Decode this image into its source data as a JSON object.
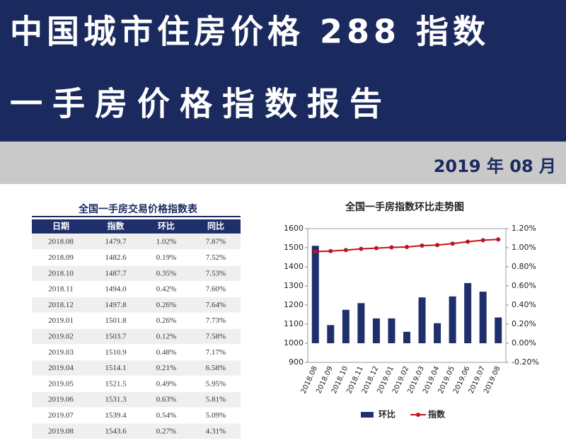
{
  "header": {
    "title": "中国城市住房价格 288 指数",
    "subtitle": "一手房价格指数报告",
    "date": "2019 年 08 月"
  },
  "table": {
    "title": "全国一手房交易价格指数表",
    "columns": [
      "日期",
      "指数",
      "环比",
      "同比"
    ],
    "rows": [
      [
        "2018.08",
        "1479.7",
        "1.02%",
        "7.87%"
      ],
      [
        "2018.09",
        "1482.6",
        "0.19%",
        "7.52%"
      ],
      [
        "2018.10",
        "1487.7",
        "0.35%",
        "7.53%"
      ],
      [
        "2018.11",
        "1494.0",
        "0.42%",
        "7.60%"
      ],
      [
        "2018.12",
        "1497.8",
        "0.26%",
        "7.64%"
      ],
      [
        "2019.01",
        "1501.8",
        "0.26%",
        "7.73%"
      ],
      [
        "2019.02",
        "1503.7",
        "0.12%",
        "7.58%"
      ],
      [
        "2019.03",
        "1510.9",
        "0.48%",
        "7.17%"
      ],
      [
        "2019.04",
        "1514.1",
        "0.21%",
        "6.58%"
      ],
      [
        "2019.05",
        "1521.5",
        "0.49%",
        "5.95%"
      ],
      [
        "2019.06",
        "1531.3",
        "0.63%",
        "5.81%"
      ],
      [
        "2019.07",
        "1539.4",
        "0.54%",
        "5.09%"
      ],
      [
        "2019.08",
        "1543.6",
        "0.27%",
        "4.31%"
      ]
    ]
  },
  "chart_data": {
    "type": "bar_line",
    "title": "全国一手房指数环比走势图",
    "categories": [
      "2018.08",
      "2018.09",
      "2018.10",
      "2018.11",
      "2018.12",
      "2019.01",
      "2019.02",
      "2019.03",
      "2019.04",
      "2019.05",
      "2019.06",
      "2019.07",
      "2019.08"
    ],
    "series": [
      {
        "name": "环比",
        "type": "bar",
        "axis": "y2",
        "color": "#1f2f6b",
        "values": [
          1.02,
          0.19,
          0.35,
          0.42,
          0.26,
          0.26,
          0.12,
          0.48,
          0.21,
          0.49,
          0.63,
          0.54,
          0.27
        ]
      },
      {
        "name": "指数",
        "type": "line",
        "axis": "y",
        "color": "#c0141c",
        "values": [
          1479.7,
          1482.6,
          1487.7,
          1494.0,
          1497.8,
          1501.8,
          1503.7,
          1510.9,
          1514.1,
          1521.5,
          1531.3,
          1539.4,
          1543.6
        ]
      }
    ],
    "ylim": [
      900,
      1600
    ],
    "yticks": [
      900,
      1000,
      1100,
      1200,
      1300,
      1400,
      1500,
      1600
    ],
    "y2lim": [
      -0.2,
      1.2
    ],
    "y2ticks": [
      {
        "value": -0.2,
        "label": "-0.20%"
      },
      {
        "value": 0,
        "label": "0.00%"
      },
      {
        "value": 0.2,
        "label": "0.20%"
      },
      {
        "value": 0.4,
        "label": "0.40%"
      },
      {
        "value": 0.6,
        "label": "0.60%"
      },
      {
        "value": 0.8,
        "label": "0.80%"
      },
      {
        "value": 1.0,
        "label": "1.00%"
      },
      {
        "value": 1.2,
        "label": "1.20%"
      }
    ],
    "legend": "bottom"
  }
}
